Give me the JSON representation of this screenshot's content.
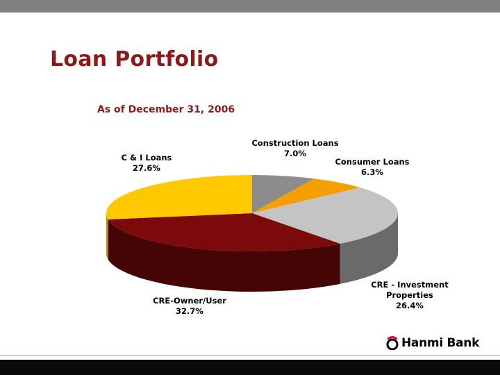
{
  "slide": {
    "title": "Loan Portfolio",
    "subtitle": "As of December 31, 2006"
  },
  "logo": {
    "text": "Hanmi Bank",
    "icon": "hanmi-logo-icon",
    "color": "#c8102e"
  },
  "colors": {
    "title": "#8b1a1a",
    "top_bar": "#808080",
    "bottom_bar": "#0a0a0a"
  },
  "chart_data": {
    "type": "pie",
    "style": "3d",
    "title": "",
    "slices": [
      {
        "label": "Construction Loans",
        "value": 7.0,
        "value_label": "7.0%",
        "color": "#8c8c8c",
        "side": "#5f5f5f"
      },
      {
        "label": "Consumer Loans",
        "value": 6.3,
        "value_label": "6.3%",
        "color": "#f5a000",
        "side": "#b87400"
      },
      {
        "label": "CRE - Investment Properties",
        "value": 26.4,
        "value_label": "26.4%",
        "color": "#c4c4c4",
        "side": "#6a6a6a"
      },
      {
        "label": "CRE-Owner/User",
        "value": 32.7,
        "value_label": "32.7%",
        "color": "#7d0a0a",
        "side": "#450505"
      },
      {
        "label": "C & I Loans",
        "value": 27.6,
        "value_label": "27.6%",
        "color": "#ffc800",
        "side": "#b88f00"
      }
    ]
  }
}
